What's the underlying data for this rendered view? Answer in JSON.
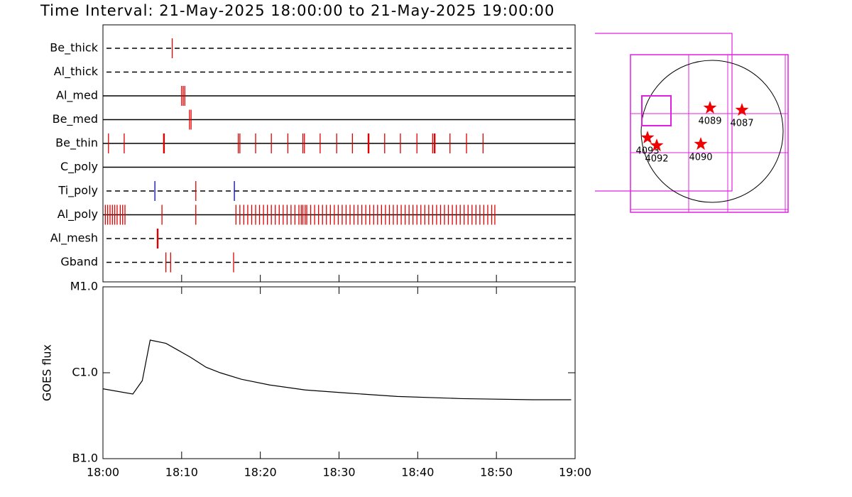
{
  "chart_data": [
    {
      "type": "event",
      "title": "Time Interval: 21-May-2025 18:00:00 to 21-May-2025 19:00:00",
      "xlim": [
        0,
        60
      ],
      "rows": [
        {
          "name": "Be_thick",
          "line": "dashed",
          "series": [
            {
              "color": "#e00000",
              "values": [
                8.8
              ]
            }
          ]
        },
        {
          "name": "Al_thick",
          "line": "dashed",
          "series": []
        },
        {
          "name": "Al_med",
          "line": "solid",
          "series": [
            {
              "color": "#e00000",
              "values": [
                10.0,
                10.2,
                10.4
              ]
            }
          ]
        },
        {
          "name": "Be_med",
          "line": "solid",
          "series": [
            {
              "color": "#e00000",
              "values": [
                11.0,
                11.2
              ]
            }
          ]
        },
        {
          "name": "Be_thin",
          "line": "solid",
          "series": [
            {
              "color": "#e00000",
              "values": [
                0.7,
                2.7,
                7.7,
                7.8,
                17.2,
                17.4,
                19.4,
                21.4,
                23.5,
                25.4,
                25.6,
                27.6,
                29.7,
                31.7,
                33.7,
                33.8,
                35.8,
                37.8,
                39.9,
                41.9,
                42.1,
                42.2,
                44.1,
                46.2,
                48.3
              ]
            }
          ]
        },
        {
          "name": "C_poly",
          "line": "solid",
          "series": []
        },
        {
          "name": "Ti_poly",
          "line": "dashed",
          "series": [
            {
              "color": "#e00000",
              "values": [
                11.8
              ]
            },
            {
              "color": "#0000e0",
              "values": [
                6.6,
                16.7
              ]
            }
          ]
        },
        {
          "name": "Al_poly",
          "line": "solid",
          "series": [
            {
              "color": "#e00000",
              "values": [
                0.3,
                0.6,
                0.9,
                1.2,
                1.5,
                1.8,
                2.2,
                2.5,
                2.8,
                7.5,
                11.8,
                16.9,
                17.4,
                17.9,
                18.4,
                18.9,
                19.4,
                19.9,
                20.4,
                20.9,
                21.4,
                21.9,
                22.4,
                22.9,
                23.4,
                23.9,
                24.4,
                24.9,
                25.2,
                25.4,
                25.7,
                25.9,
                26.4,
                26.9,
                27.4,
                27.9,
                28.4,
                28.9,
                29.4,
                29.9,
                30.4,
                30.9,
                31.4,
                31.9,
                32.4,
                32.9,
                33.4,
                33.9,
                34.4,
                34.9,
                35.4,
                35.9,
                36.4,
                36.9,
                37.4,
                37.9,
                38.4,
                38.9,
                39.4,
                39.9,
                40.4,
                40.9,
                41.4,
                41.9,
                42.4,
                42.9,
                43.4,
                43.9,
                44.4,
                44.9,
                45.4,
                45.9,
                46.4,
                46.9,
                47.4,
                47.9,
                48.4,
                48.9,
                49.4,
                49.8
              ]
            }
          ]
        },
        {
          "name": "Al_mesh",
          "line": "dashed",
          "series": [
            {
              "color": "#e00000",
              "values": [
                6.9,
                7.0
              ]
            }
          ]
        },
        {
          "name": "Gband",
          "line": "dashed",
          "series": [
            {
              "color": "#e00000",
              "values": [
                8.0,
                8.6,
                16.6
              ]
            }
          ]
        }
      ]
    },
    {
      "type": "line",
      "ylabel": "GOES flux",
      "log": true,
      "color": "#000000",
      "xlim": [
        0,
        60
      ],
      "xticks": [
        {
          "value": 0,
          "label": "18:00"
        },
        {
          "value": 10,
          "label": "18:10"
        },
        {
          "value": 20,
          "label": "18:20"
        },
        {
          "value": 30,
          "label": "18:30"
        },
        {
          "value": 40,
          "label": "18:40"
        },
        {
          "value": 50,
          "label": "18:50"
        },
        {
          "value": 60,
          "label": "19:00"
        }
      ],
      "ylim": [
        1e-06,
        0.0001
      ],
      "yticks": [
        {
          "value": 1e-06,
          "label": "B1.0"
        },
        {
          "value": 1e-05,
          "label": "C1.0"
        },
        {
          "value": 0.0001,
          "label": "M1.0"
        }
      ],
      "x": [
        0,
        3.8,
        5,
        6,
        8,
        9.5,
        11.1,
        13.1,
        14.9,
        17.6,
        21.2,
        25.7,
        31.1,
        37.4,
        45.6,
        54.6,
        59.5
      ],
      "values": [
        6.5e-06,
        5.65e-06,
        8.1e-06,
        2.4e-05,
        2.2e-05,
        1.84e-05,
        1.52e-05,
        1.16e-05,
        1e-05,
        8.4e-06,
        7.2e-06,
        6.3e-06,
        5.8e-06,
        5.3e-06,
        5e-06,
        4.85e-06,
        4.85e-06
      ]
    }
  ],
  "map": {
    "regions": [
      {
        "label": "4089"
      },
      {
        "label": "4087"
      },
      {
        "label": "4093"
      },
      {
        "label": "4092"
      },
      {
        "label": "4090"
      }
    ]
  }
}
